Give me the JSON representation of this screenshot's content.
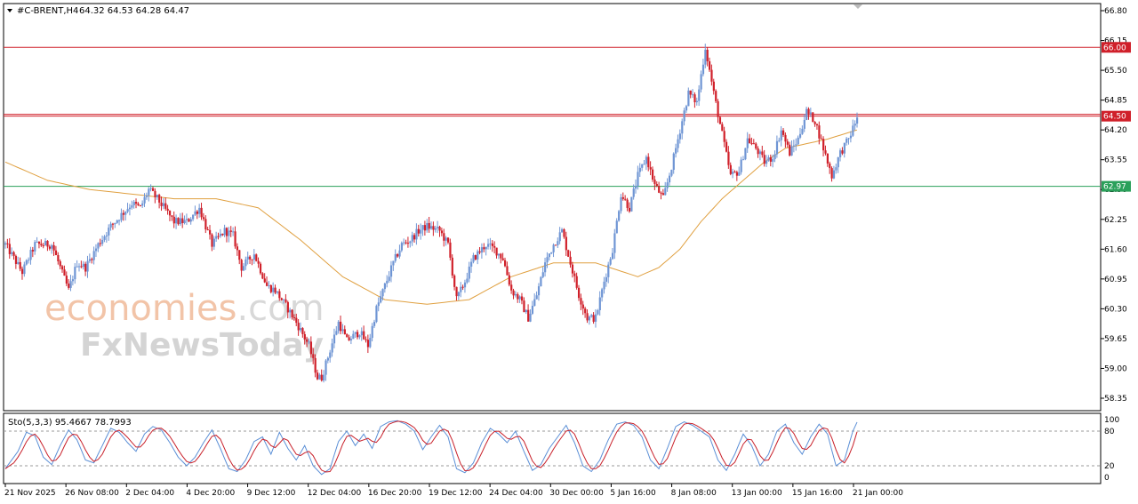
{
  "header": {
    "symbol": "#C-BRENT,H4",
    "ohlc": "64.32 64.53 64.28 64.47"
  },
  "oscillator": {
    "label": "Sto(5,3,3) 95.4667 78.7993",
    "levels": [
      80,
      20
    ],
    "scale_labels": [
      "100",
      "80",
      "20",
      "0"
    ]
  },
  "watermark": {
    "line1_a": "economies",
    "line1_b": ".com",
    "line2": "FxNewsToday"
  },
  "colors": {
    "bull": "#6f95d4",
    "bear": "#d0202a",
    "ma": "#e0a040",
    "resistance": "#d0202a",
    "support": "#2aa05a",
    "stoch_main": "#5b8fd6",
    "stoch_signal": "#c8202a"
  },
  "chart_data": {
    "type": "candlestick",
    "timeframe": "H4",
    "ylim": [
      58.35,
      66.8
    ],
    "y_ticks": [
      "66.80",
      "66.15",
      "65.50",
      "64.85",
      "64.20",
      "63.55",
      "62.90",
      "62.25",
      "61.60",
      "60.95",
      "60.30",
      "59.65",
      "59.00",
      "58.35"
    ],
    "x_ticks": [
      "21 Nov 2025",
      "26 Nov 08:00",
      "2 Dec 04:00",
      "4 Dec 20:00",
      "9 Dec 12:00",
      "12 Dec 04:00",
      "16 Dec 20:00",
      "19 Dec 12:00",
      "24 Dec 04:00",
      "30 Dec 00:00",
      "5 Jan 16:00",
      "8 Jan 08:00",
      "13 Jan 00:00",
      "15 Jan 16:00",
      "21 Jan 00:00"
    ],
    "horizontal_lines": [
      {
        "label": "66.00",
        "value": 66.0,
        "role": "resistance"
      },
      {
        "label": "64.50",
        "value": 64.5,
        "role": "resistance"
      },
      {
        "label": "62.97",
        "value": 62.97,
        "role": "support"
      }
    ],
    "path_points": [
      [
        0,
        61.7
      ],
      [
        8,
        61.1
      ],
      [
        14,
        61.7
      ],
      [
        22,
        61.7
      ],
      [
        30,
        60.7
      ],
      [
        34,
        61.3
      ],
      [
        38,
        61.2
      ],
      [
        44,
        61.7
      ],
      [
        50,
        62.1
      ],
      [
        56,
        62.4
      ],
      [
        60,
        62.6
      ],
      [
        64,
        62.5
      ],
      [
        68,
        62.9
      ],
      [
        72,
        62.7
      ],
      [
        80,
        62.2
      ],
      [
        86,
        62.2
      ],
      [
        92,
        62.5
      ],
      [
        98,
        61.7
      ],
      [
        104,
        62.0
      ],
      [
        108,
        61.9
      ],
      [
        112,
        61.2
      ],
      [
        118,
        61.5
      ],
      [
        124,
        60.8
      ],
      [
        128,
        60.7
      ],
      [
        134,
        60.3
      ],
      [
        138,
        60.0
      ],
      [
        144,
        59.5
      ],
      [
        148,
        58.8
      ],
      [
        150,
        58.8
      ],
      [
        154,
        59.4
      ],
      [
        158,
        60.0
      ],
      [
        162,
        59.6
      ],
      [
        168,
        59.8
      ],
      [
        172,
        59.5
      ],
      [
        176,
        60.3
      ],
      [
        180,
        60.8
      ],
      [
        184,
        61.3
      ],
      [
        188,
        61.7
      ],
      [
        192,
        61.8
      ],
      [
        196,
        62.0
      ],
      [
        200,
        62.1
      ],
      [
        206,
        62.0
      ],
      [
        210,
        61.7
      ],
      [
        214,
        60.5
      ],
      [
        218,
        60.9
      ],
      [
        222,
        61.4
      ],
      [
        228,
        61.7
      ],
      [
        232,
        61.6
      ],
      [
        236,
        61.4
      ],
      [
        240,
        60.7
      ],
      [
        244,
        60.5
      ],
      [
        248,
        60.1
      ],
      [
        252,
        60.6
      ],
      [
        256,
        61.3
      ],
      [
        260,
        61.7
      ],
      [
        264,
        62.0
      ],
      [
        268,
        61.3
      ],
      [
        272,
        60.6
      ],
      [
        276,
        60.1
      ],
      [
        280,
        60.1
      ],
      [
        284,
        60.9
      ],
      [
        288,
        61.6
      ],
      [
        292,
        62.8
      ],
      [
        296,
        62.5
      ],
      [
        300,
        63.2
      ],
      [
        304,
        63.6
      ],
      [
        308,
        63.0
      ],
      [
        312,
        62.7
      ],
      [
        316,
        63.4
      ],
      [
        320,
        64.2
      ],
      [
        324,
        65.0
      ],
      [
        328,
        64.8
      ],
      [
        332,
        66.0
      ],
      [
        336,
        65.0
      ],
      [
        340,
        64.1
      ],
      [
        344,
        63.2
      ],
      [
        348,
        63.3
      ],
      [
        352,
        64.0
      ],
      [
        356,
        63.8
      ],
      [
        360,
        63.5
      ],
      [
        364,
        63.6
      ],
      [
        368,
        64.2
      ],
      [
        372,
        63.7
      ],
      [
        376,
        64.0
      ],
      [
        380,
        64.6
      ],
      [
        384,
        64.4
      ],
      [
        388,
        63.8
      ],
      [
        392,
        63.2
      ],
      [
        396,
        63.7
      ],
      [
        400,
        64.0
      ],
      [
        404,
        64.47
      ]
    ],
    "ma_path": [
      [
        0,
        63.5
      ],
      [
        20,
        63.1
      ],
      [
        40,
        62.9
      ],
      [
        60,
        62.8
      ],
      [
        80,
        62.7
      ],
      [
        100,
        62.7
      ],
      [
        120,
        62.5
      ],
      [
        140,
        61.8
      ],
      [
        160,
        61.0
      ],
      [
        180,
        60.5
      ],
      [
        200,
        60.4
      ],
      [
        220,
        60.5
      ],
      [
        240,
        61.0
      ],
      [
        260,
        61.3
      ],
      [
        280,
        61.3
      ],
      [
        300,
        61.0
      ],
      [
        310,
        61.2
      ],
      [
        320,
        61.6
      ],
      [
        330,
        62.2
      ],
      [
        340,
        62.7
      ],
      [
        350,
        63.1
      ],
      [
        360,
        63.5
      ],
      [
        370,
        63.8
      ],
      [
        380,
        63.9
      ],
      [
        390,
        64.0
      ],
      [
        404,
        64.2
      ]
    ],
    "stochastic": {
      "k": 95.4667,
      "d": 78.7993,
      "k_path": [
        [
          0,
          15
        ],
        [
          6,
          45
        ],
        [
          10,
          78
        ],
        [
          14,
          72
        ],
        [
          18,
          35
        ],
        [
          22,
          22
        ],
        [
          26,
          55
        ],
        [
          30,
          82
        ],
        [
          34,
          65
        ],
        [
          38,
          30
        ],
        [
          42,
          25
        ],
        [
          46,
          55
        ],
        [
          50,
          85
        ],
        [
          54,
          78
        ],
        [
          58,
          60
        ],
        [
          62,
          45
        ],
        [
          66,
          75
        ],
        [
          70,
          88
        ],
        [
          74,
          82
        ],
        [
          78,
          60
        ],
        [
          82,
          35
        ],
        [
          86,
          20
        ],
        [
          90,
          35
        ],
        [
          94,
          60
        ],
        [
          98,
          82
        ],
        [
          102,
          50
        ],
        [
          106,
          15
        ],
        [
          110,
          10
        ],
        [
          114,
          30
        ],
        [
          118,
          62
        ],
        [
          122,
          70
        ],
        [
          126,
          40
        ],
        [
          130,
          78
        ],
        [
          134,
          50
        ],
        [
          138,
          30
        ],
        [
          142,
          55
        ],
        [
          146,
          20
        ],
        [
          150,
          5
        ],
        [
          154,
          15
        ],
        [
          158,
          62
        ],
        [
          162,
          80
        ],
        [
          166,
          55
        ],
        [
          170,
          75
        ],
        [
          174,
          50
        ],
        [
          178,
          88
        ],
        [
          182,
          96
        ],
        [
          186,
          98
        ],
        [
          190,
          92
        ],
        [
          194,
          80
        ],
        [
          198,
          48
        ],
        [
          202,
          70
        ],
        [
          206,
          90
        ],
        [
          210,
          70
        ],
        [
          214,
          15
        ],
        [
          218,
          8
        ],
        [
          222,
          25
        ],
        [
          226,
          60
        ],
        [
          230,
          85
        ],
        [
          234,
          75
        ],
        [
          238,
          60
        ],
        [
          242,
          80
        ],
        [
          246,
          45
        ],
        [
          250,
          12
        ],
        [
          254,
          22
        ],
        [
          258,
          50
        ],
        [
          262,
          70
        ],
        [
          266,
          90
        ],
        [
          270,
          60
        ],
        [
          274,
          20
        ],
        [
          278,
          10
        ],
        [
          282,
          30
        ],
        [
          286,
          65
        ],
        [
          290,
          92
        ],
        [
          294,
          96
        ],
        [
          298,
          90
        ],
        [
          302,
          70
        ],
        [
          306,
          30
        ],
        [
          310,
          15
        ],
        [
          314,
          50
        ],
        [
          318,
          88
        ],
        [
          322,
          96
        ],
        [
          326,
          90
        ],
        [
          330,
          80
        ],
        [
          334,
          70
        ],
        [
          338,
          30
        ],
        [
          342,
          12
        ],
        [
          346,
          40
        ],
        [
          350,
          75
        ],
        [
          354,
          55
        ],
        [
          358,
          20
        ],
        [
          362,
          40
        ],
        [
          366,
          80
        ],
        [
          370,
          92
        ],
        [
          374,
          60
        ],
        [
          378,
          40
        ],
        [
          382,
          70
        ],
        [
          386,
          92
        ],
        [
          390,
          75
        ],
        [
          394,
          20
        ],
        [
          398,
          30
        ],
        [
          402,
          80
        ],
        [
          404,
          95.4667
        ]
      ]
    }
  }
}
